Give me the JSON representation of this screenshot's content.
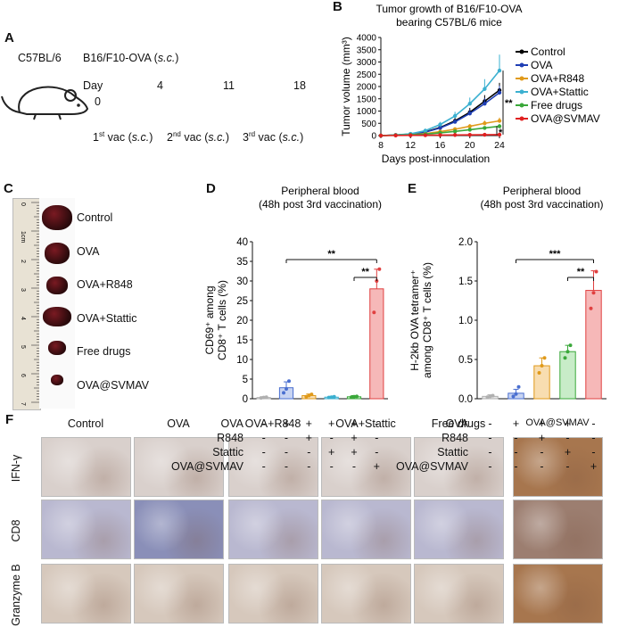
{
  "panel_labels": {
    "A": "A",
    "B": "B",
    "C": "C",
    "D": "D",
    "E": "E",
    "F": "F"
  },
  "panelA": {
    "mouse_strain": "C57BL/6",
    "tumor_line": "B16/F10-OVA (",
    "sc": "s.c.",
    "close": ")",
    "day_label": "Day",
    "days": [
      "0",
      "4",
      "11",
      "18"
    ],
    "vac_prefix": [
      "1",
      "2",
      "3"
    ],
    "vac_sup": [
      "st",
      "nd",
      "rd"
    ],
    "vac_word": " vac (",
    "vac_close": ")"
  },
  "chart_data": [
    {
      "type": "line",
      "title": "Tumor growth of B16/F10-OVA bearing C57BL/6 mice",
      "title_lines": [
        "Tumor growth of B16/F10-OVA",
        "bearing C57BL/6 mice"
      ],
      "ylabel": "Tumor volume (mm³)",
      "xlabel": "Days post-innoculation",
      "x": [
        8,
        10,
        12,
        14,
        16,
        18,
        20,
        22,
        24
      ],
      "xticks": [
        8,
        12,
        16,
        20,
        24
      ],
      "yticks": [
        0,
        500,
        1000,
        1500,
        2000,
        2500,
        3000,
        3500,
        4000
      ],
      "xlim": [
        8,
        24
      ],
      "ylim": [
        0,
        4000
      ],
      "series": [
        {
          "name": "Control",
          "color": "#000000",
          "values": [
            0,
            20,
            60,
            150,
            330,
            600,
            950,
            1400,
            1850
          ],
          "err": [
            0,
            10,
            20,
            40,
            80,
            120,
            180,
            250,
            300
          ]
        },
        {
          "name": "OVA",
          "color": "#1f3fb5",
          "values": [
            0,
            20,
            55,
            140,
            310,
            560,
            900,
            1300,
            1750
          ],
          "err": [
            0,
            10,
            20,
            40,
            70,
            110,
            160,
            230,
            280
          ]
        },
        {
          "name": "OVA+R848",
          "color": "#e09a1a",
          "values": [
            0,
            15,
            35,
            80,
            160,
            260,
            380,
            500,
            600
          ],
          "err": [
            0,
            8,
            15,
            30,
            50,
            70,
            90,
            110,
            130
          ]
        },
        {
          "name": "OVA+Stattic",
          "color": "#3bb0d0",
          "values": [
            0,
            25,
            70,
            200,
            450,
            800,
            1300,
            1900,
            2650
          ],
          "err": [
            0,
            12,
            25,
            60,
            110,
            170,
            250,
            400,
            650
          ]
        },
        {
          "name": "Free drugs",
          "color": "#3aa83a",
          "values": [
            0,
            15,
            30,
            60,
            110,
            170,
            240,
            310,
            380
          ],
          "err": [
            0,
            8,
            12,
            20,
            30,
            40,
            60,
            70,
            90
          ]
        },
        {
          "name": "OVA@SVMAV",
          "color": "#e02020",
          "values": [
            0,
            5,
            10,
            15,
            20,
            25,
            30,
            35,
            40
          ],
          "err": [
            0,
            3,
            4,
            5,
            6,
            7,
            8,
            9,
            10
          ]
        }
      ],
      "annotations": [
        "**",
        "*"
      ],
      "legend": "right"
    },
    {
      "type": "bar",
      "title_lines": [
        "Peripheral blood",
        "(48h post 3rd vaccination)"
      ],
      "ylabel_lines": [
        "CD69⁺ among",
        "CD8⁺ T cells (%)"
      ],
      "yticks": [
        0,
        5,
        10,
        15,
        20,
        25,
        30,
        35,
        40
      ],
      "ylim": [
        0,
        40
      ],
      "values": [
        0.3,
        2.8,
        0.8,
        0.4,
        0.5,
        28
      ],
      "err": [
        0.2,
        1.5,
        0.4,
        0.2,
        0.3,
        5
      ],
      "points": [
        [
          0.2,
          0.3,
          0.4
        ],
        [
          1.5,
          2.5,
          4.5
        ],
        [
          0.5,
          0.8,
          1.1
        ],
        [
          0.3,
          0.4,
          0.5
        ],
        [
          0.4,
          0.5,
          0.6
        ],
        [
          22,
          30,
          33
        ]
      ],
      "colors": [
        "#b0b0b0",
        "#4a6fd0",
        "#e09a1a",
        "#3bb0d0",
        "#3aa83a",
        "#e04040"
      ],
      "fills": [
        "#e6e6e6",
        "#c8d4f2",
        "#f8ddb0",
        "#c8eaf3",
        "#c8ecc8",
        "#f6b8b8"
      ],
      "sig": [
        {
          "from": 1,
          "to": 5,
          "label": "**"
        },
        {
          "from": 4,
          "to": 5,
          "label": "**"
        }
      ]
    },
    {
      "type": "bar",
      "title_lines": [
        "Peripheral blood",
        "(48h post 3rd vaccination)"
      ],
      "ylabel_lines": [
        "H-2kb OVA tetramer⁺",
        "among CD8⁺ T cells (%)"
      ],
      "yticks": [
        0.0,
        0.5,
        1.0,
        1.5,
        2.0
      ],
      "ylim": [
        0,
        2.0
      ],
      "values": [
        0.03,
        0.07,
        0.42,
        0.6,
        1.38
      ],
      "err": [
        0.02,
        0.05,
        0.1,
        0.08,
        0.25
      ],
      "points": [
        [
          0.02,
          0.03,
          0.04
        ],
        [
          0.03,
          0.06,
          0.15
        ],
        [
          0.33,
          0.42,
          0.52
        ],
        [
          0.52,
          0.6,
          0.68
        ],
        [
          1.15,
          1.35,
          1.62
        ]
      ],
      "colors": [
        "#b0b0b0",
        "#4a6fd0",
        "#e09a1a",
        "#3aa83a",
        "#e04040"
      ],
      "fills": [
        "#e6e6e6",
        "#c8d4f2",
        "#f8ddb0",
        "#c8ecc8",
        "#f6b8b8"
      ],
      "sig": [
        {
          "from": 1,
          "to": 4,
          "label": "***"
        },
        {
          "from": 3,
          "to": 4,
          "label": "**"
        }
      ]
    }
  ],
  "panelD_table": {
    "rows": [
      "OVA",
      "R848",
      "Stattic",
      "OVA@SVMAV"
    ],
    "cells": [
      [
        "-",
        "+",
        "+",
        "+",
        "+",
        "-"
      ],
      [
        "-",
        "-",
        "+",
        "-",
        "+",
        "-"
      ],
      [
        "-",
        "-",
        "-",
        "+",
        "+",
        "-"
      ],
      [
        "-",
        "-",
        "-",
        "-",
        "-",
        "+"
      ]
    ]
  },
  "panelE_table": {
    "rows": [
      "OVA",
      "R848",
      "Stattic",
      "OVA@SVMAV"
    ],
    "cells": [
      [
        "-",
        "+",
        "+",
        "+",
        "-"
      ],
      [
        "-",
        "-",
        "+",
        "-",
        "-"
      ],
      [
        "-",
        "-",
        "-",
        "+",
        "-"
      ],
      [
        "-",
        "-",
        "-",
        "-",
        "+"
      ]
    ]
  },
  "panelC": {
    "labels": [
      "Control",
      "OVA",
      "OVA+R848",
      "OVA+Stattic",
      "Free drugs",
      "OVA@SVMAV"
    ],
    "ruler": [
      "0",
      "1cm",
      "2",
      "3",
      "4",
      "5",
      "6",
      "7"
    ]
  },
  "panelF": {
    "columns": [
      "Control",
      "OVA",
      "OVA+R848",
      "OVA+Stattic",
      "Free drugs",
      "OVA@SVMAV"
    ],
    "rows": [
      "IFN-γ",
      "CD8",
      "Granzyme B"
    ]
  }
}
